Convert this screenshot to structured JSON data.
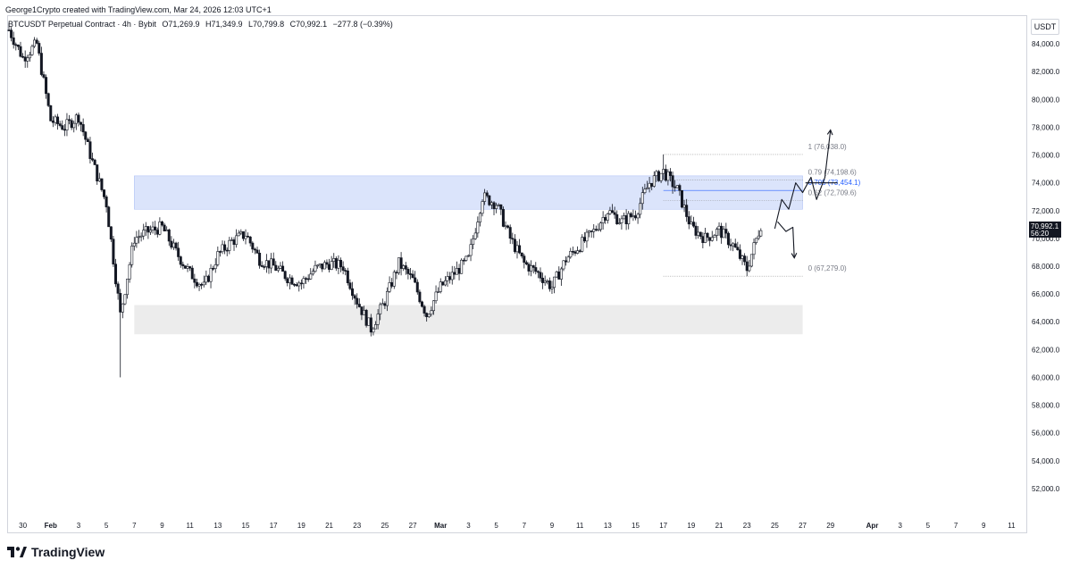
{
  "header": {
    "attribution": "George1Crypto created with TradingView.com, Mar 24, 2026 12:03 UTC+1"
  },
  "symbol": {
    "name": "BTCUSDT Perpetual Contract · 4h · Bybit",
    "open": "O71,269.9",
    "high": "H71,349.9",
    "low": "L70,799.8",
    "close": "C70,992.1",
    "change": "−277.8 (−0.39%)"
  },
  "currency": "USDT",
  "price_tag": {
    "price": "70,992.1",
    "countdown": "56:20"
  },
  "brand": {
    "name": "TradingView"
  },
  "colors": {
    "up": "#131722",
    "down": "#131722",
    "zone_blue": "#dbe4fb",
    "zone_gray": "#ececec",
    "fib_highlight": "#2962ff"
  },
  "chart_data": {
    "type": "candlestick",
    "title": "",
    "ylim": [
      50000,
      86000
    ],
    "y_ticks": [
      52000,
      54000,
      56000,
      58000,
      60000,
      62000,
      64000,
      66000,
      68000,
      70000,
      72000,
      74000,
      76000,
      78000,
      80000,
      82000,
      84000
    ],
    "y_tick_labels": [
      "52,000.0",
      "54,000.0",
      "56,000.0",
      "58,000.0",
      "60,000.0",
      "62,000.0",
      "64,000.0",
      "66,000.0",
      "68,000.0",
      "70,000.0",
      "72,000.0",
      "74,000.0",
      "76,000.0",
      "78,000.0",
      "80,000.0",
      "82,000.0",
      "84,000.0"
    ],
    "x_start": "2026-01-29",
    "x_end": "2026-04-12",
    "x_ticks": [
      {
        "date": "2026-01-30",
        "label": "30"
      },
      {
        "date": "2026-02-01",
        "label": "Feb"
      },
      {
        "date": "2026-02-03",
        "label": "3"
      },
      {
        "date": "2026-02-05",
        "label": "5"
      },
      {
        "date": "2026-02-07",
        "label": "7"
      },
      {
        "date": "2026-02-09",
        "label": "9"
      },
      {
        "date": "2026-02-11",
        "label": "11"
      },
      {
        "date": "2026-02-13",
        "label": "13"
      },
      {
        "date": "2026-02-15",
        "label": "15"
      },
      {
        "date": "2026-02-17",
        "label": "17"
      },
      {
        "date": "2026-02-19",
        "label": "19"
      },
      {
        "date": "2026-02-21",
        "label": "21"
      },
      {
        "date": "2026-02-23",
        "label": "23"
      },
      {
        "date": "2026-02-25",
        "label": "25"
      },
      {
        "date": "2026-02-27",
        "label": "27"
      },
      {
        "date": "2026-03-01",
        "label": "Mar"
      },
      {
        "date": "2026-03-03",
        "label": "3"
      },
      {
        "date": "2026-03-05",
        "label": "5"
      },
      {
        "date": "2026-03-07",
        "label": "7"
      },
      {
        "date": "2026-03-09",
        "label": "9"
      },
      {
        "date": "2026-03-11",
        "label": "11"
      },
      {
        "date": "2026-03-13",
        "label": "13"
      },
      {
        "date": "2026-03-15",
        "label": "15"
      },
      {
        "date": "2026-03-17",
        "label": "17"
      },
      {
        "date": "2026-03-19",
        "label": "19"
      },
      {
        "date": "2026-03-21",
        "label": "21"
      },
      {
        "date": "2026-03-23",
        "label": "23"
      },
      {
        "date": "2026-03-25",
        "label": "25"
      },
      {
        "date": "2026-03-27",
        "label": "27"
      },
      {
        "date": "2026-03-29",
        "label": "29"
      },
      {
        "date": "2026-04-01",
        "label": "Apr"
      },
      {
        "date": "2026-04-03",
        "label": "3"
      },
      {
        "date": "2026-04-05",
        "label": "5"
      },
      {
        "date": "2026-04-07",
        "label": "7"
      },
      {
        "date": "2026-04-09",
        "label": "9"
      },
      {
        "date": "2026-04-11",
        "label": "11"
      }
    ],
    "close_path": [
      {
        "date": "2026-01-29",
        "close": 85000
      },
      {
        "date": "2026-01-30",
        "close": 83000
      },
      {
        "date": "2026-01-31",
        "close": 84000
      },
      {
        "date": "2026-02-01",
        "close": 78500
      },
      {
        "date": "2026-02-02",
        "close": 78000
      },
      {
        "date": "2026-02-03",
        "close": 78800
      },
      {
        "date": "2026-02-04",
        "close": 75500
      },
      {
        "date": "2026-02-05",
        "close": 72500
      },
      {
        "date": "2026-02-06",
        "close": 64500
      },
      {
        "date": "2026-02-07",
        "close": 70000
      },
      {
        "date": "2026-02-08",
        "close": 70500
      },
      {
        "date": "2026-02-09",
        "close": 70800
      },
      {
        "date": "2026-02-10",
        "close": 69000
      },
      {
        "date": "2026-02-11",
        "close": 67500
      },
      {
        "date": "2026-02-12",
        "close": 66500
      },
      {
        "date": "2026-02-13",
        "close": 68800
      },
      {
        "date": "2026-02-14",
        "close": 69800
      },
      {
        "date": "2026-02-15",
        "close": 70300
      },
      {
        "date": "2026-02-16",
        "close": 68500
      },
      {
        "date": "2026-02-17",
        "close": 68000
      },
      {
        "date": "2026-02-18",
        "close": 67200
      },
      {
        "date": "2026-02-19",
        "close": 66800
      },
      {
        "date": "2026-02-20",
        "close": 67800
      },
      {
        "date": "2026-02-21",
        "close": 68200
      },
      {
        "date": "2026-02-22",
        "close": 68000
      },
      {
        "date": "2026-02-23",
        "close": 65500
      },
      {
        "date": "2026-02-24",
        "close": 63500
      },
      {
        "date": "2026-02-25",
        "close": 65500
      },
      {
        "date": "2026-02-26",
        "close": 68200
      },
      {
        "date": "2026-02-27",
        "close": 67000
      },
      {
        "date": "2026-02-28",
        "close": 64500
      },
      {
        "date": "2026-03-01",
        "close": 66500
      },
      {
        "date": "2026-03-02",
        "close": 67500
      },
      {
        "date": "2026-03-03",
        "close": 68500
      },
      {
        "date": "2026-03-04",
        "close": 73000
      },
      {
        "date": "2026-03-05",
        "close": 72500
      },
      {
        "date": "2026-03-06",
        "close": 70000
      },
      {
        "date": "2026-03-07",
        "close": 68200
      },
      {
        "date": "2026-03-08",
        "close": 67500
      },
      {
        "date": "2026-03-09",
        "close": 66500
      },
      {
        "date": "2026-03-10",
        "close": 68500
      },
      {
        "date": "2026-03-11",
        "close": 69500
      },
      {
        "date": "2026-03-12",
        "close": 70500
      },
      {
        "date": "2026-03-13",
        "close": 72000
      },
      {
        "date": "2026-03-14",
        "close": 71200
      },
      {
        "date": "2026-03-15",
        "close": 71800
      },
      {
        "date": "2026-03-16",
        "close": 74000
      },
      {
        "date": "2026-03-17",
        "close": 74800
      },
      {
        "date": "2026-03-18",
        "close": 73500
      },
      {
        "date": "2026-03-19",
        "close": 70800
      },
      {
        "date": "2026-03-20",
        "close": 70000
      },
      {
        "date": "2026-03-21",
        "close": 70600
      },
      {
        "date": "2026-03-22",
        "close": 69500
      },
      {
        "date": "2026-03-23",
        "close": 67800
      },
      {
        "date": "2026-03-24",
        "close": 70992.1
      }
    ],
    "events": [
      {
        "date": "2026-01-29",
        "price": 85500,
        "label": "high"
      },
      {
        "date": "2026-02-06",
        "price": 60000,
        "label": "low"
      },
      {
        "date": "2026-03-17",
        "price": 76038,
        "label": "high"
      },
      {
        "date": "2026-03-23",
        "price": 67279,
        "label": "low"
      }
    ],
    "zones": [
      {
        "name": "supply-zone",
        "top": 74500,
        "bottom": 72100,
        "from": "2026-02-07",
        "to": "2026-03-27"
      },
      {
        "name": "demand-zone",
        "top": 65200,
        "bottom": 63100,
        "from": "2026-02-07",
        "to": "2026-03-27"
      }
    ],
    "fib": {
      "from": "2026-03-17",
      "to": "2026-03-27",
      "levels": [
        {
          "ratio": "1",
          "price": 76038.0,
          "label": "1 (76,038.0)"
        },
        {
          "ratio": "0.79",
          "price": 74198.6,
          "label": "0.79 (74,198.6)"
        },
        {
          "ratio": "0.705",
          "price": 73454.1,
          "label": "0.705 (73,454.1)",
          "highlight": true
        },
        {
          "ratio": "0.62",
          "price": 72709.6,
          "label": "0.62 (72,709.6)"
        },
        {
          "ratio": "0",
          "price": 67279.0,
          "label": "0 (67,279.0)"
        }
      ]
    },
    "drawn_paths": [
      {
        "name": "bullish-scenario",
        "points": [
          {
            "date": "2026-03-25",
            "price": 70700
          },
          {
            "date": "2026-03-25.5",
            "price": 72800
          },
          {
            "date": "2026-03-26",
            "price": 72100
          },
          {
            "date": "2026-03-26.5",
            "price": 74000
          },
          {
            "date": "2026-03-27",
            "price": 73300
          },
          {
            "date": "2026-03-27.6",
            "price": 74400
          },
          {
            "date": "2026-03-28",
            "price": 72800
          },
          {
            "date": "2026-03-28.6",
            "price": 74400
          },
          {
            "date": "2026-03-29",
            "price": 77800
          }
        ],
        "arrow": true
      },
      {
        "name": "bearish-scenario",
        "points": [
          {
            "date": "2026-03-25.2",
            "price": 71200
          },
          {
            "date": "2026-03-25.8",
            "price": 70500
          },
          {
            "date": "2026-03-26.3",
            "price": 70800
          },
          {
            "date": "2026-03-26.4",
            "price": 68600
          }
        ],
        "arrow": true
      },
      {
        "name": "breakout-level",
        "points": [
          {
            "date": "2026-03-27.2",
            "price": 74000
          },
          {
            "date": "2026-03-29.5",
            "price": 74000
          }
        ],
        "arrow": false
      }
    ],
    "grid": false,
    "legend": "none"
  }
}
